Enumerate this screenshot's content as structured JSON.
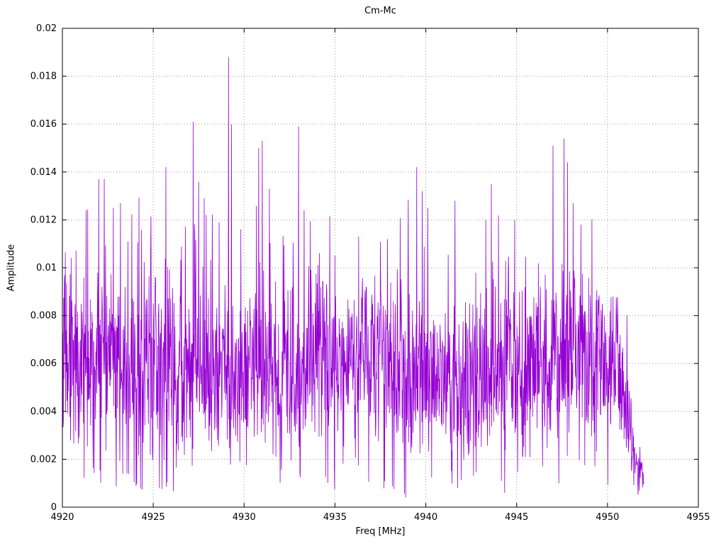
{
  "page": {
    "background": "#ffffff"
  },
  "chart_data": {
    "type": "line",
    "title": "Cm-Mc",
    "xlabel": "Freq [MHz]",
    "ylabel": "Amplitude",
    "xlim": [
      4920,
      4955
    ],
    "ylim": [
      0,
      0.02
    ],
    "x_tick_values": [
      4920,
      4925,
      4930,
      4935,
      4940,
      4945,
      4950,
      4955
    ],
    "x_tick_labels": [
      "4920",
      "4925",
      "4930",
      "4935",
      "4940",
      "4945",
      "4950",
      "4955"
    ],
    "y_tick_values": [
      0,
      0.002,
      0.004,
      0.006,
      0.008,
      0.01,
      0.012,
      0.014,
      0.016,
      0.018,
      0.02
    ],
    "y_tick_labels": [
      "0",
      "0.002",
      "0.004",
      "0.006",
      "0.008",
      "0.01",
      "0.012",
      "0.014",
      "0.016",
      "0.018",
      "0.02"
    ],
    "grid": true,
    "legend": "none",
    "line_color": "#9400d3",
    "grid_color": "#9a9a9a",
    "axis_color": "#000000",
    "signal": {
      "description": "Dense noisy amplitude spectrum spanning 4920 to ~4952 MHz, baseline fluctuating roughly 0.001-0.012, rolling off to near zero above 4950.4 MHz",
      "x_start": 4920.0,
      "x_end": 4952.0,
      "points_per_mhz": 56,
      "seed": 1234,
      "base_mean": 0.0058,
      "base_spread": 0.0042,
      "dip_prob": 0.05,
      "spike_prob": 0.035,
      "envelope_depth": 0.1,
      "envelope_freq": 0.5,
      "rolloff_start": 4950.4,
      "rolloff_end": 4952.0,
      "rolloff_factor": 0.82,
      "y_min": 0.0003,
      "y_max": 0.0195,
      "peaks": [
        {
          "x": 4921.3,
          "y": 0.0124
        },
        {
          "x": 4922.0,
          "y": 0.0137
        },
        {
          "x": 4922.3,
          "y": 0.0137
        },
        {
          "x": 4922.8,
          "y": 0.0125
        },
        {
          "x": 4923.2,
          "y": 0.0127
        },
        {
          "x": 4923.6,
          "y": 0.0111
        },
        {
          "x": 4925.7,
          "y": 0.0142
        },
        {
          "x": 4927.2,
          "y": 0.0161
        },
        {
          "x": 4927.5,
          "y": 0.0136
        },
        {
          "x": 4927.8,
          "y": 0.0129
        },
        {
          "x": 4929.15,
          "y": 0.0188
        },
        {
          "x": 4929.3,
          "y": 0.016
        },
        {
          "x": 4930.8,
          "y": 0.015
        },
        {
          "x": 4931.0,
          "y": 0.0153
        },
        {
          "x": 4931.4,
          "y": 0.0133
        },
        {
          "x": 4933.0,
          "y": 0.0159
        },
        {
          "x": 4933.3,
          "y": 0.0124
        },
        {
          "x": 4935.0,
          "y": 0.0105
        },
        {
          "x": 4936.3,
          "y": 0.0113
        },
        {
          "x": 4937.9,
          "y": 0.0112
        },
        {
          "x": 4939.5,
          "y": 0.0142
        },
        {
          "x": 4939.8,
          "y": 0.0132
        },
        {
          "x": 4940.1,
          "y": 0.0125
        },
        {
          "x": 4941.6,
          "y": 0.0128
        },
        {
          "x": 4943.3,
          "y": 0.012
        },
        {
          "x": 4943.6,
          "y": 0.0135
        },
        {
          "x": 4944.9,
          "y": 0.012
        },
        {
          "x": 4947.0,
          "y": 0.0151
        },
        {
          "x": 4947.6,
          "y": 0.0154
        },
        {
          "x": 4947.8,
          "y": 0.0144
        },
        {
          "x": 4948.1,
          "y": 0.0127
        },
        {
          "x": 4950.3,
          "y": 0.0088
        }
      ]
    }
  }
}
